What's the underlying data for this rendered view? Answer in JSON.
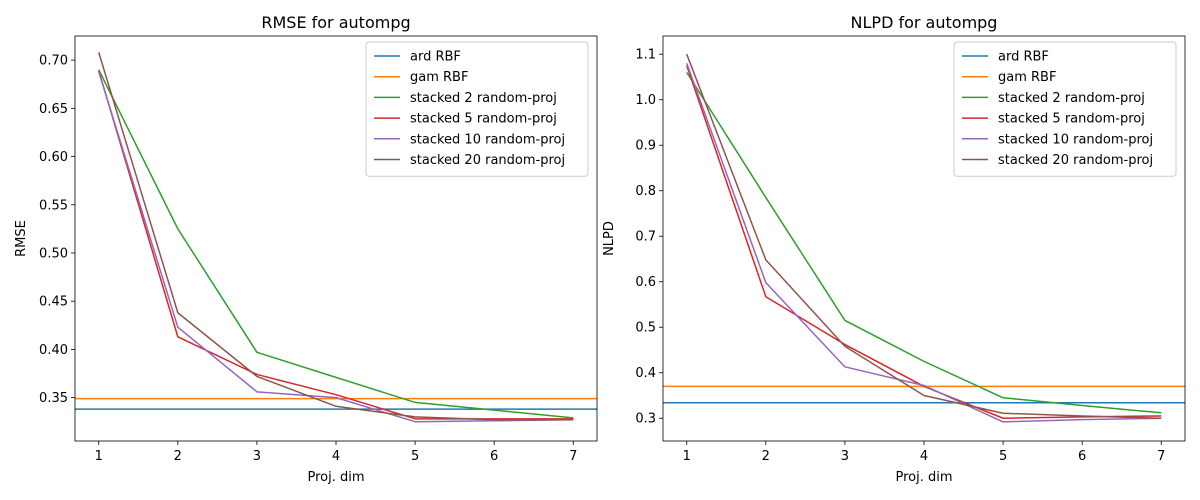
{
  "chart_data": [
    {
      "type": "line",
      "title": "RMSE for autompg",
      "xlabel": "Proj. dim",
      "ylabel": "RMSE",
      "x": [
        1,
        2,
        3,
        4,
        5,
        6,
        7
      ],
      "xlim": [
        0.7,
        7.3
      ],
      "ylim": [
        0.305,
        0.725
      ],
      "xticks": [
        1,
        2,
        3,
        4,
        5,
        6,
        7
      ],
      "yticks": [
        0.35,
        0.4,
        0.45,
        0.5,
        0.55,
        0.6,
        0.65,
        0.7
      ],
      "ytick_decimals": 2,
      "legend_position": "top-right",
      "baselines": [
        {
          "name": "ard RBF",
          "value": 0.338,
          "color": "#1f77b4"
        },
        {
          "name": "gam RBF",
          "value": 0.349,
          "color": "#ff7f0e"
        }
      ],
      "series": [
        {
          "name": "stacked 2 random-proj",
          "color": "#2ca02c",
          "values": [
            0.69,
            0.525,
            0.397,
            0.371,
            0.345,
            0.337,
            0.329
          ]
        },
        {
          "name": "stacked 5 random-proj",
          "color": "#d62728",
          "values": [
            0.689,
            0.413,
            0.374,
            0.353,
            0.328,
            0.328,
            0.328
          ]
        },
        {
          "name": "stacked 10 random-proj",
          "color": "#9467bd",
          "values": [
            0.688,
            0.423,
            0.356,
            0.35,
            0.325,
            0.326,
            0.327
          ]
        },
        {
          "name": "stacked 20 random-proj",
          "color": "#8c564b",
          "values": [
            0.708,
            0.438,
            0.372,
            0.341,
            0.33,
            0.327,
            0.327
          ]
        }
      ]
    },
    {
      "type": "line",
      "title": "NLPD for autompg",
      "xlabel": "Proj. dim",
      "ylabel": "NLPD",
      "x": [
        1,
        2,
        3,
        4,
        5,
        6,
        7
      ],
      "xlim": [
        0.7,
        7.3
      ],
      "ylim": [
        0.25,
        1.14
      ],
      "xticks": [
        1,
        2,
        3,
        4,
        5,
        6,
        7
      ],
      "yticks": [
        0.3,
        0.4,
        0.5,
        0.6,
        0.7,
        0.8,
        0.9,
        1.0,
        1.1
      ],
      "ytick_decimals": 1,
      "legend_position": "top-right",
      "baselines": [
        {
          "name": "ard RBF",
          "value": 0.334,
          "color": "#1f77b4"
        },
        {
          "name": "gam RBF",
          "value": 0.37,
          "color": "#ff7f0e"
        }
      ],
      "series": [
        {
          "name": "stacked 2 random-proj",
          "color": "#2ca02c",
          "values": [
            1.06,
            0.785,
            0.515,
            0.425,
            0.345,
            0.328,
            0.312
          ]
        },
        {
          "name": "stacked 5 random-proj",
          "color": "#d62728",
          "values": [
            1.075,
            0.567,
            0.462,
            0.37,
            0.3,
            0.303,
            0.305
          ]
        },
        {
          "name": "stacked 10 random-proj",
          "color": "#9467bd",
          "values": [
            1.08,
            0.598,
            0.413,
            0.372,
            0.292,
            0.297,
            0.3
          ]
        },
        {
          "name": "stacked 20 random-proj",
          "color": "#8c564b",
          "values": [
            1.1,
            0.648,
            0.458,
            0.35,
            0.311,
            0.305,
            0.3
          ]
        }
      ]
    }
  ]
}
